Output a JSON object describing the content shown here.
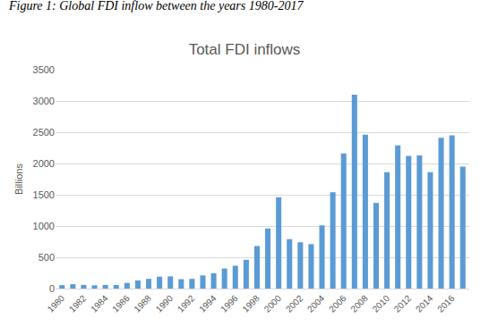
{
  "chart_data": {
    "type": "bar",
    "caption": "Figure 1: Global FDI inflow between the years 1980-2017",
    "title": "Total FDI inflows",
    "y_label": "Billions",
    "categories": [
      "1980",
      null,
      "1982",
      null,
      "1984",
      null,
      "1986",
      null,
      "1988",
      null,
      "1990",
      null,
      "1992",
      null,
      "1994",
      null,
      "1996",
      null,
      "1998",
      null,
      "2000",
      null,
      "2002",
      null,
      "2004",
      null,
      "2006",
      null,
      "2008",
      null,
      "2010",
      null,
      "2012",
      null,
      "2014",
      null,
      "2016",
      null
    ],
    "values": [
      55,
      70,
      58,
      52,
      58,
      57,
      90,
      130,
      155,
      190,
      195,
      150,
      155,
      210,
      245,
      320,
      365,
      460,
      680,
      960,
      1460,
      790,
      740,
      710,
      1010,
      1540,
      2160,
      3100,
      2460,
      1370,
      1860,
      2290,
      2120,
      2130,
      1860,
      2410,
      2450,
      1950
    ],
    "color": "#5b9bd5",
    "ylim": [
      0,
      3500
    ],
    "yticks": [
      0,
      500,
      1000,
      1500,
      2000,
      2500,
      3000,
      3500
    ],
    "grid": true
  }
}
